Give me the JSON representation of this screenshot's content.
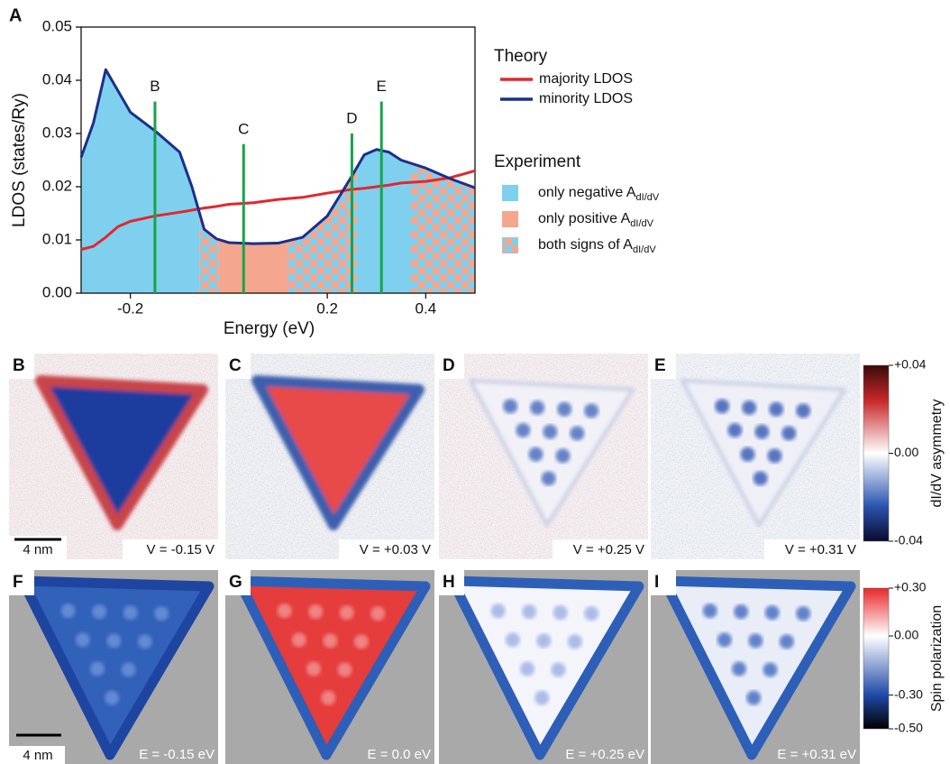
{
  "figure_label": "A",
  "chart_data": {
    "type": "line",
    "x_label": "Energy (eV)",
    "y_label": "LDOS (states/Ry)",
    "x": [
      -0.3,
      -0.275,
      -0.25,
      -0.225,
      -0.2,
      -0.15,
      -0.1,
      -0.075,
      -0.05,
      -0.025,
      0,
      0.05,
      0.1,
      0.15,
      0.2,
      0.25,
      0.275,
      0.3,
      0.325,
      0.35,
      0.4,
      0.45,
      0.5
    ],
    "series": [
      {
        "name": "majority LDOS",
        "color": "#e3262e",
        "values": [
          0.0082,
          0.0088,
          0.0105,
          0.0125,
          0.0135,
          0.0145,
          0.0152,
          0.0156,
          0.016,
          0.0163,
          0.0167,
          0.017,
          0.0176,
          0.018,
          0.0188,
          0.0195,
          0.0197,
          0.02,
          0.0203,
          0.0207,
          0.021,
          0.0217,
          0.023
        ]
      },
      {
        "name": "minority LDOS",
        "color": "#1b2f8a",
        "values": [
          0.0255,
          0.032,
          0.042,
          0.038,
          0.034,
          0.0305,
          0.0265,
          0.02,
          0.012,
          0.0102,
          0.0095,
          0.0093,
          0.0094,
          0.0105,
          0.0145,
          0.022,
          0.026,
          0.027,
          0.0265,
          0.025,
          0.0235,
          0.0215,
          0.0198
        ]
      }
    ],
    "xlim": [
      -0.3,
      0.5
    ],
    "ylim": [
      0,
      0.05
    ],
    "xticks": [
      -0.2,
      0.2,
      0.4
    ],
    "yticks": [
      {
        "value": 0,
        "label": "0.00"
      },
      0.01,
      0.02,
      0.03,
      0.04,
      0.05
    ],
    "legend_title": "Theory",
    "markers": [
      {
        "label": "B",
        "x": -0.15,
        "y": 0.036
      },
      {
        "label": "C",
        "x": 0.03,
        "y": 0.028
      },
      {
        "label": "D",
        "x": 0.25,
        "y": 0.03
      },
      {
        "label": "E",
        "x": 0.31,
        "y": 0.036
      }
    ],
    "marker_color": "#17a34a",
    "experiment": {
      "title": "Experiment",
      "items": [
        {
          "label": "only negative A",
          "subscript": "dI/dV",
          "colors": [
            "#7fd0ee"
          ],
          "ranges": [
            [
              -0.3,
              -0.06
            ],
            [
              0.26,
              0.37
            ]
          ]
        },
        {
          "label": "only positive A",
          "subscript": "dI/dV",
          "colors": [
            "#f5a68e"
          ],
          "ranges": [
            [
              -0.02,
              0.12
            ]
          ]
        },
        {
          "label": "both signs of A",
          "subscript": "dI/dV",
          "colors": [
            "#7fd0ee",
            "#f5a68e"
          ],
          "ranges": [
            [
              -0.06,
              -0.02
            ],
            [
              0.12,
              0.26
            ],
            [
              0.37,
              0.5
            ]
          ]
        }
      ]
    }
  },
  "panels": [
    {
      "label": "B",
      "caption": "V = -0.15 V",
      "scale_bar": "4 nm"
    },
    {
      "label": "C",
      "caption": "V = +0.03 V"
    },
    {
      "label": "D",
      "caption": "V = +0.25 V"
    },
    {
      "label": "E",
      "caption": "V = +0.31 V"
    },
    {
      "label": "F",
      "caption": "E = -0.15 eV",
      "scale_bar": "4 nm"
    },
    {
      "label": "G",
      "caption": "E = 0.0 eV"
    },
    {
      "label": "H",
      "caption": "E = +0.25 eV"
    },
    {
      "label": "I",
      "caption": "E = +0.31 eV"
    }
  ],
  "colorbars": [
    {
      "title": "dI/dV asymmetry",
      "ticks": [
        "+0.04",
        "0.00",
        "-0.04"
      ]
    },
    {
      "title": "Spin polarization",
      "ticks": [
        "+0.30",
        "0.00",
        "-0.30",
        "-0.50"
      ]
    }
  ]
}
